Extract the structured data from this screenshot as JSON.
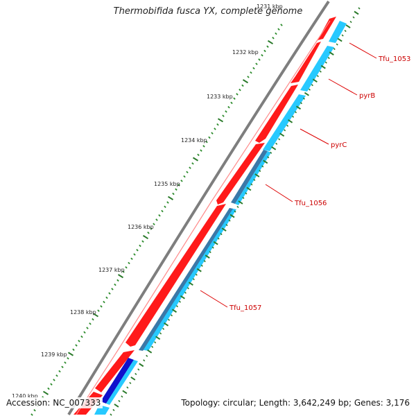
{
  "title": "Thermobifida fusca YX, complete genome",
  "ticks": [
    {
      "label": "1231 kbp"
    },
    {
      "label": "1232 kbp"
    },
    {
      "label": "1233 kbp"
    },
    {
      "label": "1234 kbp"
    },
    {
      "label": "1235 kbp"
    },
    {
      "label": "1236 kbp"
    },
    {
      "label": "1237 kbp"
    },
    {
      "label": "1238 kbp"
    },
    {
      "label": "1239 kbp"
    },
    {
      "label": "1240 kbp"
    }
  ],
  "genes": [
    {
      "label": "Tfu_1053"
    },
    {
      "label": "pyrB"
    },
    {
      "label": "pyrC"
    },
    {
      "label": "Tfu_1056"
    },
    {
      "label": "Tfu_1057"
    }
  ],
  "footer": {
    "accession": "Accession: NC_007333",
    "summary": "Topology: circular; Length: 3,642,249 bp; Genes: 3,176"
  },
  "colors": {
    "backbone": "#8a8a8a",
    "forward_gene": "#ff0000",
    "cds_feature": "#22ccff",
    "cds_dark": "#3377aa",
    "tick_major": "#2a7a2a",
    "tick_minor": "#2a8a2a",
    "label_red": "#cc0000"
  }
}
